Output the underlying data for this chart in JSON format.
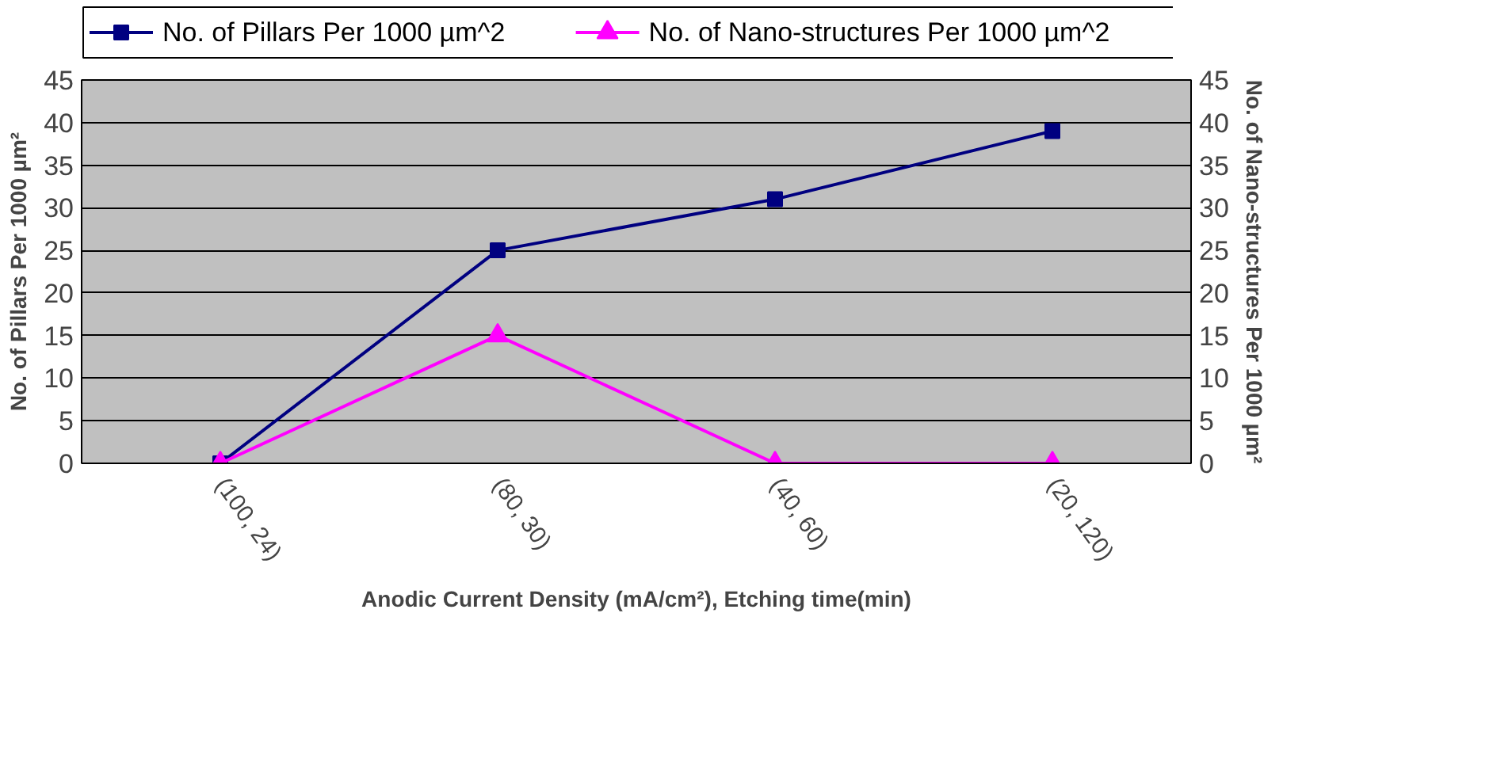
{
  "chart_data": {
    "type": "line",
    "xlabel": "Anodic Current Density (mA/cm²), Etching time(min)",
    "ylabel": "No. of Pillars Per 1000 µm²",
    "y2label": "No. of Nano-structures Per 1000 µm²",
    "categories": [
      "(100, 24)",
      "(80, 30)",
      "(40, 60)",
      "(20, 120)"
    ],
    "series": [
      {
        "name": "No. of Pillars Per 1000 µm^2",
        "color": "#000080",
        "marker": "square",
        "values": [
          0,
          25,
          31,
          39
        ]
      },
      {
        "name": "No. of Nano-structures Per 1000 µm^2",
        "color": "#ff00ff",
        "marker": "triangle",
        "values": [
          0,
          15,
          0,
          0
        ]
      }
    ],
    "ylim": [
      0,
      45
    ],
    "yticks": [
      0,
      5,
      10,
      15,
      20,
      25,
      30,
      35,
      40,
      45
    ],
    "y2lim": [
      0,
      45
    ],
    "y2ticks": [
      0,
      5,
      10,
      15,
      20,
      25,
      30,
      35,
      40,
      45
    ],
    "grid": "y",
    "legend": "top",
    "line_style": "solid"
  }
}
